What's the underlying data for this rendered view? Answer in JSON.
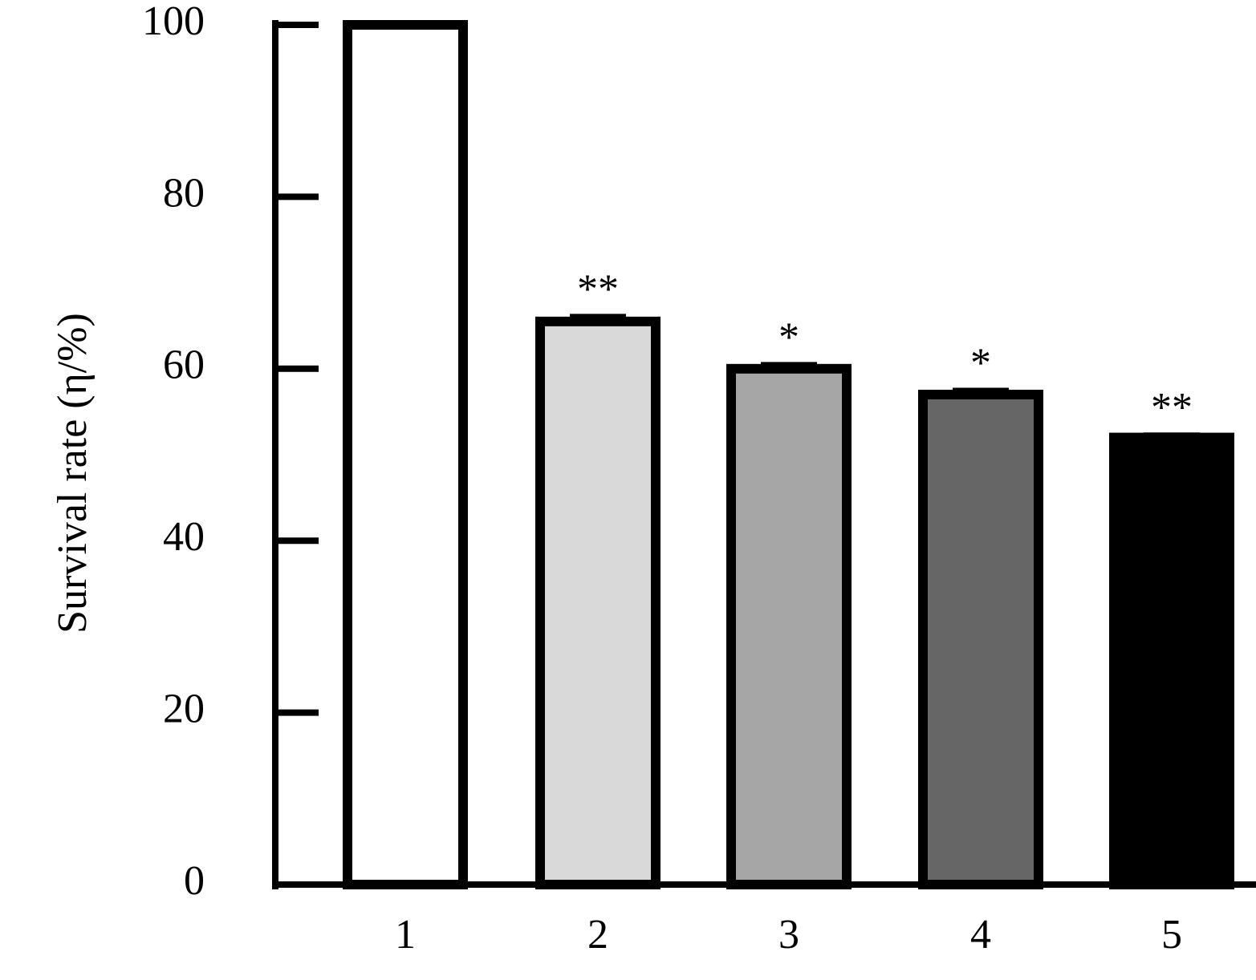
{
  "chart_data": {
    "type": "bar",
    "y_label": "Survival rate (η/%)",
    "categories": [
      "1",
      "2",
      "3",
      "4",
      "5"
    ],
    "values": [
      100,
      65.5,
      60,
      57,
      52
    ],
    "errors": [
      0,
      0.7,
      0.6,
      0.6,
      0.4
    ],
    "annotations": [
      null,
      "**",
      "*",
      "*",
      "**"
    ],
    "colors": [
      "#ffffff",
      "#d9d9d9",
      "#a6a6a6",
      "#666666",
      "#000000"
    ],
    "ylim": [
      0,
      100
    ],
    "yticks": [
      0,
      20,
      40,
      60,
      80,
      100
    ]
  }
}
